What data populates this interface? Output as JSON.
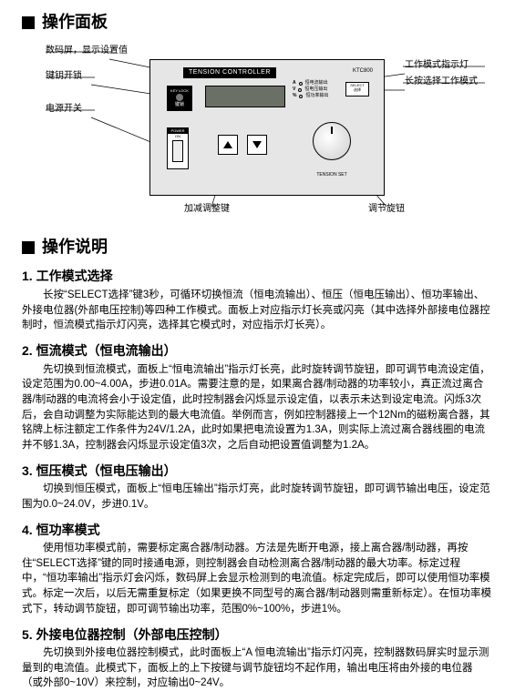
{
  "heading1": "操作面板",
  "heading2": "操作说明",
  "diagram": {
    "panel_title": "TENSION CONTROLLER",
    "model": "KTC800",
    "keylock_line1": "KEY LOCK",
    "keylock_line2": "键锁",
    "av_rows": [
      {
        "letter": "A",
        "label": "恒电流输出"
      },
      {
        "letter": "V",
        "label": "恒电压输出"
      },
      {
        "letter": "%",
        "label": "恒功率输出"
      }
    ],
    "select_line1": "SELECT",
    "select_line2": "选择",
    "power_label": "POWER",
    "power_on": "ON",
    "knob_label": "TENSION  SET",
    "callouts": {
      "lcd": "数码屏，显示设置值",
      "keylock": "键钥开锁",
      "power": "电源开关",
      "mode_led": "工作模式指示灯",
      "select_long": "长按选择工作模式",
      "arrows": "加减调整键",
      "knob": "调节旋钮"
    }
  },
  "sections": [
    {
      "title": "1. 工作模式选择",
      "paras": [
        "长按“SELECT选择”键3秒，可循环切换恒流（恒电流输出）、恒压（恒电压输出）、恒功率输出、外接电位器(外部电压控制)等四种工作模式。面板上对应指示灯长亮或闪亮（其中选择外部接电位器控制时，恒流模式指示灯闪亮，选择其它模式时，对应指示灯长亮）。"
      ]
    },
    {
      "title": "2. 恒流模式（恒电流输出）",
      "paras": [
        "先切换到恒流模式，面板上“恒电流输出”指示灯长亮，此时旋转调节旋钮，即可调节电流设定值，设定范围为0.00~4.00A，步进0.01A。需要注意的是，如果离合器/制动器的功率较小，真正流过离合器/制动器的电流将会小于设定值，此时控制器会闪烁显示设定值，以表示未达到设定电流。闪烁3次后，会自动调整为实际能达到的最大电流值。举例而言，例如控制器接上一个12Nm的磁粉离合器，其铭牌上标注额定工作条件为24V/1.2A，此时如果把电流设置为1.3A，则实际上流过离合器线圈的电流并不够1.3A，控制器会闪烁显示设定值3次，之后自动把设置值调整为1.2A。"
      ]
    },
    {
      "title": "3. 恒压模式（恒电压输出）",
      "paras": [
        "切换到恒压模式，面板上“恒电压输出”指示灯亮，此时旋转调节旋钮，即可调节输出电压，设定范围为0.0~24.0V，步进0.1V。"
      ]
    },
    {
      "title": "4. 恒功率模式",
      "paras": [
        "使用恒功率模式前，需要标定离合器/制动器。方法是先断开电源，接上离合器/制动器，再按住“SELECT选择”键的同时接通电源，则控制器会自动检测离合器/制动器的最大功率。标定过程中，“恒功率输出”指示灯会闪烁，数码屏上会显示检测到的电流值。标定完成后，即可以使用恒功率模式。标定一次后，以后无需重复标定（如果更换不同型号的离合器/制动器则需重新标定）。在恒功率模式下，转动调节旋钮，即可调节输出功率，范围0%~100%，步进1%。"
      ]
    },
    {
      "title": "5. 外接电位器控制（外部电压控制）",
      "paras": [
        "先切换到外接电位器控制模式，此时面板上“A 恒电流输出”指示灯闪亮，控制器数码屏实时显示测量到的电流值。此模式下，面板上的上下按键与调节旋钮均不起作用，输出电压将由外接的电位器（或外部0~10V）来控制，对应输出0~24V。"
      ]
    }
  ]
}
